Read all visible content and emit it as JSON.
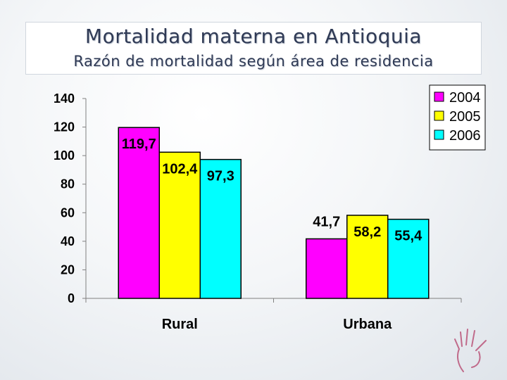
{
  "slide": {
    "title": "Mortalidad materna en Antioquia",
    "subtitle": "Razón de mortalidad según área de residencia"
  },
  "chart_data": {
    "type": "bar",
    "categories": [
      "Rural",
      "Urbana"
    ],
    "series": [
      {
        "name": "2004",
        "values": [
          119.7,
          41.7
        ],
        "labels": [
          "119,7",
          "41,7"
        ],
        "color": "#ff00ff"
      },
      {
        "name": "2005",
        "values": [
          102.4,
          58.2
        ],
        "labels": [
          "102,4",
          "58,2"
        ],
        "color": "#ffff00"
      },
      {
        "name": "2006",
        "values": [
          97.3,
          55.4
        ],
        "labels": [
          "97,3",
          "55,4"
        ],
        "color": "#00ffff"
      }
    ],
    "yticks": [
      0,
      20,
      40,
      60,
      80,
      100,
      120,
      140
    ],
    "ylim": [
      0,
      140
    ],
    "legend_position": "top-right",
    "grid": false
  }
}
